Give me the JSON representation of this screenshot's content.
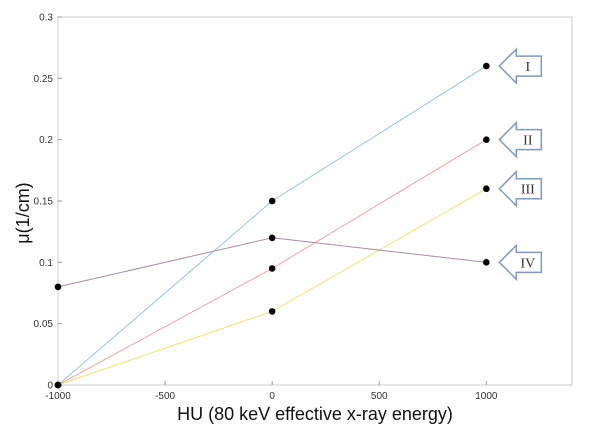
{
  "chart_data": {
    "type": "line",
    "xlabel": "HU (80 keV effective x-ray energy)",
    "ylabel": "μ(1/cm)",
    "xlim": [
      -1000,
      1400
    ],
    "ylim": [
      0,
      0.3
    ],
    "xticks": [
      "-1000",
      "-500",
      "0",
      "500",
      "1000"
    ],
    "yticks": [
      "0",
      "0.05",
      "0.1",
      "0.15",
      "0.2",
      "0.25",
      "0.3"
    ],
    "x": [
      -1000,
      0,
      1000
    ],
    "series": [
      {
        "name": "I",
        "values": [
          0,
          0.15,
          0.26
        ],
        "color": "#8ec6d8"
      },
      {
        "name": "II",
        "values": [
          0,
          0.095,
          0.2
        ],
        "color": "#f0a2a2"
      },
      {
        "name": "III",
        "values": [
          0,
          0.06,
          0.16
        ],
        "color": "#f3e07a"
      },
      {
        "name": "IV",
        "values": [
          0.08,
          0.12,
          0.1
        ],
        "color": "#a88aa6"
      }
    ],
    "grid": false,
    "legend": "arrow callouts at right end of each series"
  }
}
